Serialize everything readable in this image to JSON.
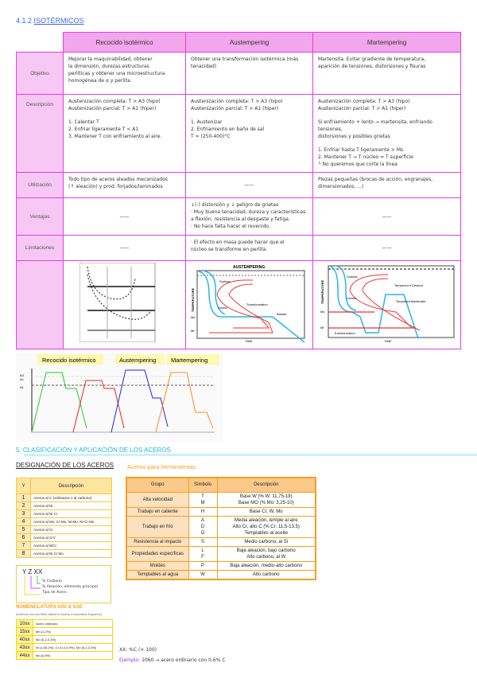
{
  "heading": {
    "number": "4.1.2",
    "title": "ISOTÉRMICOS"
  },
  "iso_table": {
    "columns": [
      "Recocido isotérmico",
      "Austempering",
      "Martempering"
    ],
    "rows": [
      {
        "label": "Objetivo",
        "cells": [
          [
            "Mejorar la maquinabilidad, obtener",
            "la dimensión, durezas estructuras",
            "perlíticas y obtener una microestructura",
            "homogénea de α y perlita."
          ],
          [
            "Obtener una transformación isotérmica (más tenacidad)"
          ],
          [
            "Martensita. Evitar gradiente de temperatura,",
            "aparición de tensiones, distorsiones y fisuras"
          ]
        ]
      },
      {
        "label": "Descripción",
        "cells": [
          [
            "Austenización completa: T > A3 (hipo)",
            "Austenización parcial: T > A1 (hiper)",
            "",
            "1. Calentar T",
            "2. Enfriar ligeramente T < A1",
            "3. Mantener T con enfriamiento al aire."
          ],
          [
            "Austenización completa: T > A3 (hipo)",
            "Austenización parcial: T > A1 (hiper)",
            "",
            "1. Austenizar",
            "2. Enfriamiento en baño de sal",
            "T ≈ (250-400)°C"
          ],
          [
            "Austenización completa: T > A3 (hipo)",
            "Austenización parcial: T > A1 (hiper)",
            "",
            "Si enfriamiento + lento → martensita, enfriando tensiones,",
            "distorsiones y posibles grietas",
            "",
            "1. Enfriar hasta T ligeramente > Ms",
            "2. Mantener T → T núcleo = T superficie",
            "└ No queremos que corte la línea"
          ]
        ]
      },
      {
        "label": "Utilización",
        "cells": [
          [
            "Todo tipo de aceros aleados mecanizados",
            "(↑ aleación) y prod. forjados/laminados"
          ],
          [
            "——"
          ],
          [
            "Piezas pequeñas (brocas de acción, engranajes,",
            "dimensionados, ...)"
          ]
        ]
      },
      {
        "label": "Ventajas",
        "cells": [
          [
            "——"
          ],
          [
            "↓(-) distorsión y ↓ peligro de grietas",
            "· Muy buena tenacidad, dureza y características",
            "a flexión, resistencia al desgaste y fatiga.",
            "· No hace falta hacer el revenido."
          ],
          [
            "——"
          ]
        ]
      },
      {
        "label": "Limitaciones",
        "cells": [
          [
            "——"
          ],
          [
            "· El efecto en masa puede hacer que el",
            "núcleo se transforme en perlita."
          ],
          [
            "——"
          ]
        ]
      }
    ],
    "figures": [
      {
        "title": ""
      },
      {
        "title": "AUSTEMPERING",
        "ylabel": "TEMPERATURE",
        "xlabel": "TIME",
        "labels": [
          "Surface",
          "Center",
          "Transformation",
          "Bainite",
          "Ms",
          "Mf"
        ]
      },
      {
        "ylabel": "TEMPERATURE",
        "xlabel": "TIME",
        "labels": [
          "Surface",
          "Center",
          "Tempered if Desired",
          "Tempered Martensite",
          "Ms",
          "Mf",
          "Transformation"
        ]
      }
    ]
  },
  "process_chart": {
    "legend": [
      "Recocido isotérmico",
      "Austempering",
      "Martempering"
    ],
    "series_colors": [
      "#22cc22",
      "#ee2222",
      "#2222ee",
      "#ff8a1a"
    ],
    "axis_labels": [
      "A3",
      "A1",
      "Ac"
    ]
  },
  "section5": {
    "title": "5. CLASIFICACIÓN Y APLICACIÓN DE LOS ACEROS"
  },
  "designacion": {
    "title": "DESIGNACIÓN DE LOS ACEROS",
    "headers": [
      "Y",
      "Descripción"
    ],
    "rows": [
      [
        "1",
        "Aceros al C (ordinarios o al carbono)"
      ],
      [
        "2",
        "Aceros al Ni"
      ],
      [
        "3",
        "Aceros al Ni Cr"
      ],
      [
        "4",
        "Aceros al Mo, Cr-Mo, Ni-Mo, Ni-Cr-Mo"
      ],
      [
        "5",
        "Aceros al Cr"
      ],
      [
        "6",
        "Aceros al CrV"
      ],
      [
        "7",
        "Aceros al WCr"
      ],
      [
        "8",
        "Aceros al Ni Cr Mo"
      ]
    ]
  },
  "herramientas": {
    "title": "Aceros para herramientas",
    "headers": [
      "Grupo",
      "Símbolo",
      "Descripción"
    ],
    "rows": [
      {
        "group": "Alta velocidad",
        "symbols": [
          "T",
          "M"
        ],
        "desc": [
          "Base W (% W: 11,75-19)",
          "Base MO (% Mo: 3,25-10)"
        ]
      },
      {
        "group": "Trabajo en caliente",
        "symbols": [
          "H"
        ],
        "desc": [
          "Base Cr, W, Mo"
        ]
      },
      {
        "group": "Trabajo en frío",
        "symbols": [
          "A",
          "D",
          "O"
        ],
        "desc": [
          "Media aleación, temple al aire",
          "Alto Cr, alto C (% Cr: 11,5-13,5)",
          "Templables al aceite"
        ]
      },
      {
        "group": "Resistencia al impacto",
        "symbols": [
          "S"
        ],
        "desc": [
          "Medio carbono, al Si"
        ]
      },
      {
        "group": "Propiedades específicas",
        "symbols": [
          "L",
          "F"
        ],
        "desc": [
          "Baja aleación, bajo carbono",
          "Alto carbono, al W"
        ]
      },
      {
        "group": "Moldes",
        "symbols": [
          "P"
        ],
        "desc": [
          "Baja aleación, medio-alto carbono"
        ]
      },
      {
        "group": "Templables al agua",
        "symbols": [
          "W"
        ],
        "desc": [
          "Alto carbono"
        ]
      }
    ]
  },
  "yzxx": {
    "code": "Y Z XX",
    "notes": [
      "% Carbono",
      "% Aleación, elemento principal",
      "Tipo de Acero"
    ]
  },
  "aisi": {
    "title": "NOMENCLATURA AISI & SAE",
    "subtitle": "(American Iron and Steel Institute & Society of Automotive Engineers)",
    "rows": [
      [
        "10xx",
        "Acero ordinario"
      ],
      [
        "15xx",
        "Mn (1-2%)"
      ],
      [
        "40xx",
        "Mo (0,2-0,3%)"
      ],
      [
        "43xx",
        "Ni (1,65-2%), Cr (0,4-0,9%), Mo (0,2-0,3%)"
      ],
      [
        "44xx",
        "Mo (0,5%)"
      ]
    ]
  },
  "notes": {
    "line1": "XX: %C (× 100)",
    "example_label": "Ejemplo:",
    "example": "1060 → acero ordinario con 0,6% C"
  }
}
